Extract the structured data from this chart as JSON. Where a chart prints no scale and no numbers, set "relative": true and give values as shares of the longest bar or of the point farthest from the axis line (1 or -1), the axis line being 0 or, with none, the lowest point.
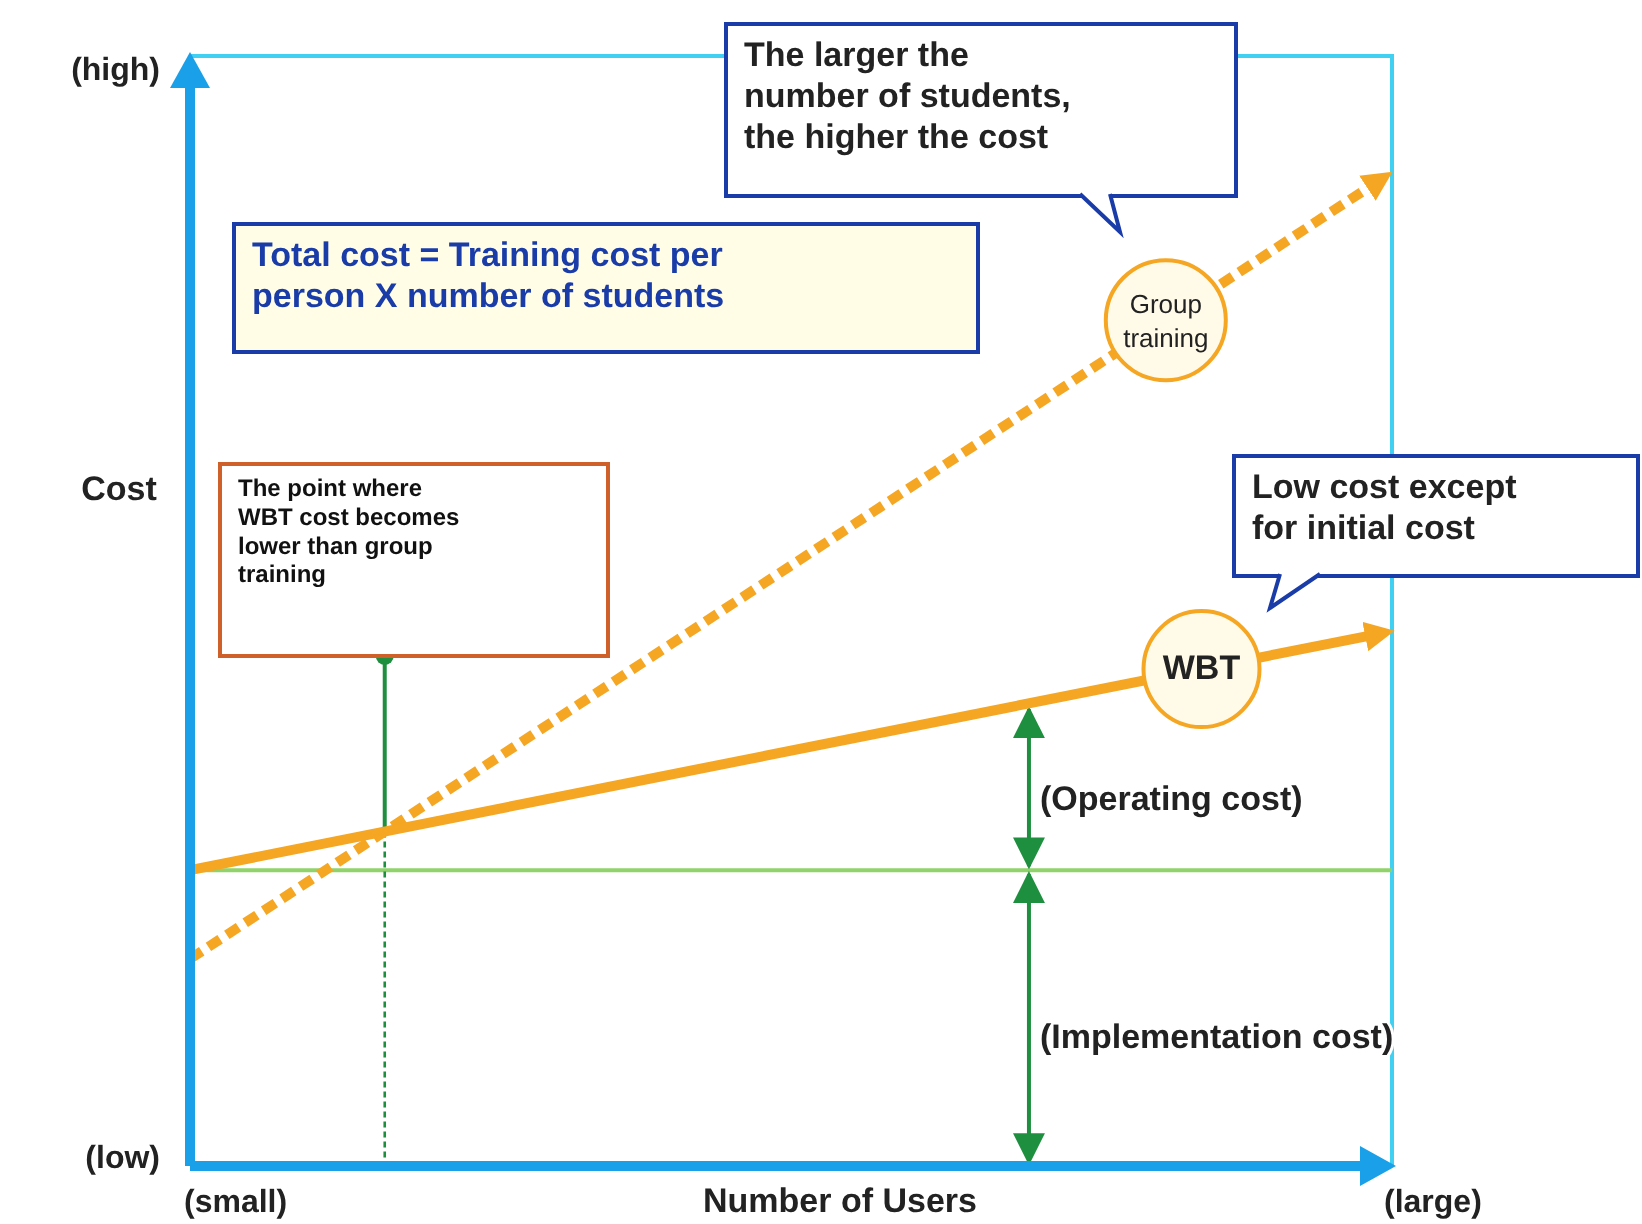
{
  "chart_data": {
    "type": "line",
    "relative": true,
    "xlabel": "Number of Users",
    "ylabel": "Cost",
    "categories": [
      null,
      null
    ],
    "series": [
      {
        "name": "Group training",
        "color": "#f5a623",
        "values": [
          0.21,
          1
        ],
        "line_style": "dashed"
      },
      {
        "name": "WBT",
        "color": "#f5a623",
        "values": [
          0.3,
          0.54
        ],
        "line_style": "solid"
      }
    ],
    "ref_lines": [
      {
        "axis": "y",
        "value": 0.3,
        "color": "#8fd36a"
      }
    ],
    "marker": "none",
    "grid": false,
    "legend": false,
    "annotations": [
      "(high)",
      "(low)",
      "(small)",
      "(large)",
      "The larger the number of students, the higher the cost",
      "Total cost = Training cost per person  X number of students",
      "The point where WBT cost becomes lower than group training",
      "Low cost except for initial cost",
      "(Operating cost)",
      "(Implementation cost)"
    ]
  }
}
